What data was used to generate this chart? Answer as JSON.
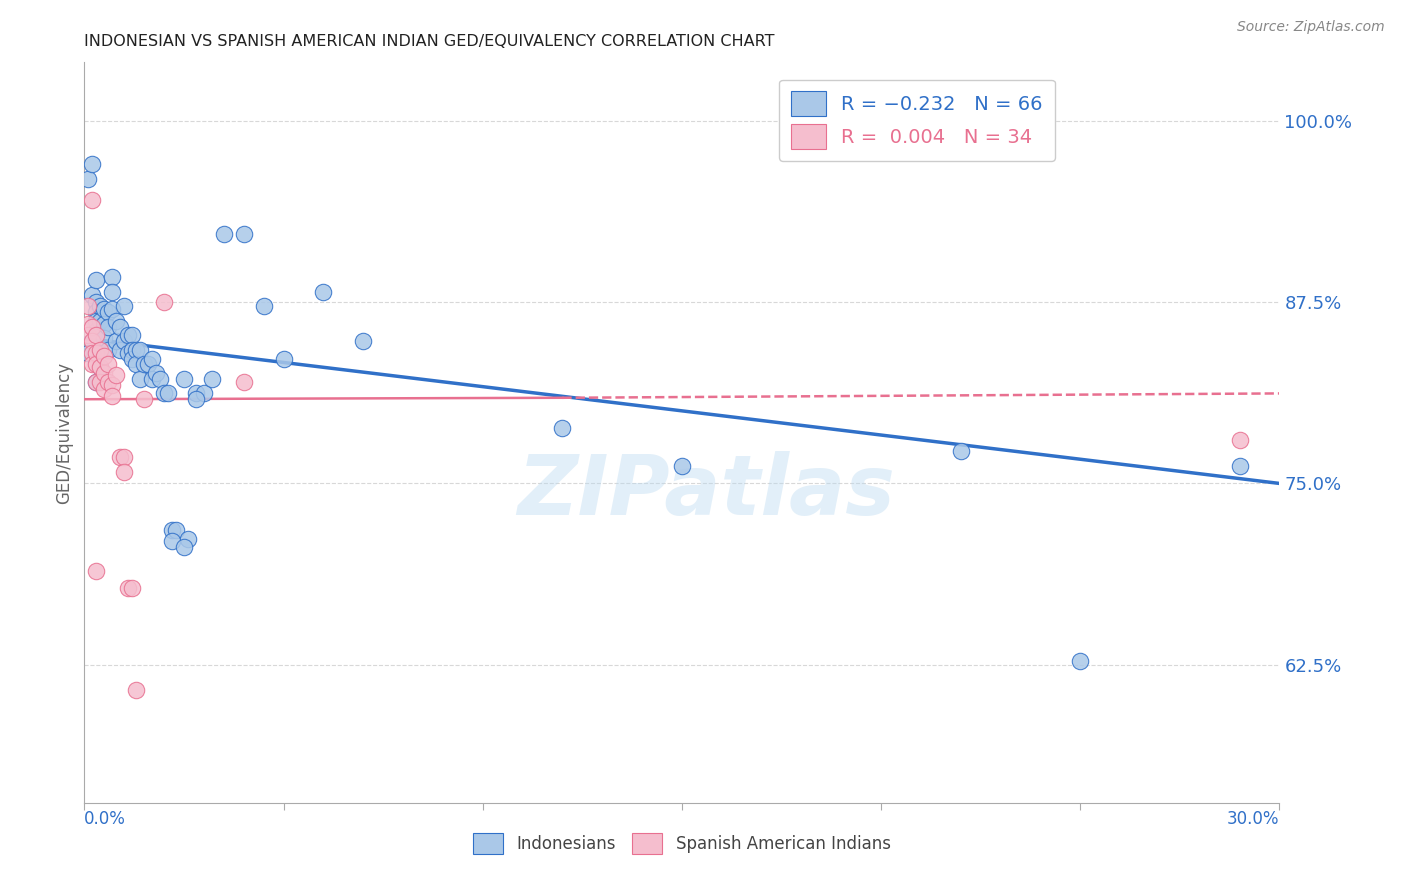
{
  "title": "INDONESIAN VS SPANISH AMERICAN INDIAN GED/EQUIVALENCY CORRELATION CHART",
  "source": "Source: ZipAtlas.com",
  "ylabel": "GED/Equivalency",
  "yticks": [
    0.625,
    0.75,
    0.875,
    1.0
  ],
  "ytick_labels": [
    "62.5%",
    "75.0%",
    "87.5%",
    "100.0%"
  ],
  "xlim": [
    0.0,
    0.3
  ],
  "ylim": [
    0.53,
    1.04
  ],
  "blue_color": "#aac8e8",
  "pink_color": "#f5bece",
  "blue_line_color": "#3070c8",
  "pink_line_color": "#e87090",
  "blue_edge_color": "#3070c8",
  "pink_edge_color": "#e87090",
  "watermark": "ZIPatlas",
  "grid_color": "#d8d8d8",
  "indonesians_x": [
    0.001,
    0.001,
    0.002,
    0.002,
    0.003,
    0.003,
    0.003,
    0.003,
    0.003,
    0.004,
    0.004,
    0.005,
    0.005,
    0.005,
    0.006,
    0.006,
    0.006,
    0.007,
    0.007,
    0.007,
    0.008,
    0.008,
    0.009,
    0.009,
    0.01,
    0.01,
    0.011,
    0.011,
    0.012,
    0.012,
    0.012,
    0.013,
    0.013,
    0.014,
    0.014,
    0.015,
    0.016,
    0.017,
    0.017,
    0.018,
    0.019,
    0.02,
    0.021,
    0.022,
    0.023,
    0.025,
    0.026,
    0.028,
    0.03,
    0.032,
    0.035,
    0.04,
    0.045,
    0.05,
    0.06,
    0.07,
    0.12,
    0.15,
    0.22,
    0.25,
    0.29,
    0.003,
    0.004,
    0.022,
    0.025,
    0.028
  ],
  "indonesians_y": [
    0.84,
    0.96,
    0.97,
    0.88,
    0.89,
    0.875,
    0.868,
    0.862,
    0.855,
    0.872,
    0.862,
    0.87,
    0.86,
    0.85,
    0.868,
    0.858,
    0.842,
    0.892,
    0.882,
    0.87,
    0.862,
    0.848,
    0.858,
    0.842,
    0.872,
    0.848,
    0.852,
    0.84,
    0.852,
    0.842,
    0.836,
    0.842,
    0.832,
    0.842,
    0.822,
    0.832,
    0.832,
    0.836,
    0.822,
    0.826,
    0.822,
    0.812,
    0.812,
    0.718,
    0.718,
    0.822,
    0.712,
    0.812,
    0.812,
    0.822,
    0.922,
    0.922,
    0.872,
    0.836,
    0.882,
    0.848,
    0.788,
    0.762,
    0.772,
    0.628,
    0.762,
    0.82,
    0.83,
    0.71,
    0.706,
    0.808
  ],
  "spanish_x": [
    0.001,
    0.001,
    0.001,
    0.002,
    0.002,
    0.002,
    0.002,
    0.003,
    0.003,
    0.003,
    0.003,
    0.004,
    0.004,
    0.004,
    0.005,
    0.005,
    0.005,
    0.006,
    0.006,
    0.007,
    0.007,
    0.008,
    0.009,
    0.01,
    0.01,
    0.011,
    0.012,
    0.013,
    0.015,
    0.02,
    0.04,
    0.29,
    0.002,
    0.003
  ],
  "spanish_y": [
    0.872,
    0.86,
    0.852,
    0.858,
    0.848,
    0.84,
    0.832,
    0.852,
    0.84,
    0.832,
    0.82,
    0.842,
    0.83,
    0.82,
    0.838,
    0.826,
    0.815,
    0.832,
    0.82,
    0.818,
    0.81,
    0.825,
    0.768,
    0.768,
    0.758,
    0.678,
    0.678,
    0.608,
    0.808,
    0.875,
    0.82,
    0.78,
    0.945,
    0.69
  ],
  "blue_trend_x": [
    0.0,
    0.3
  ],
  "blue_trend_y": [
    0.85,
    0.75
  ],
  "pink_trend_x": [
    0.0,
    0.3
  ],
  "pink_trend_y": [
    0.808,
    0.812
  ]
}
